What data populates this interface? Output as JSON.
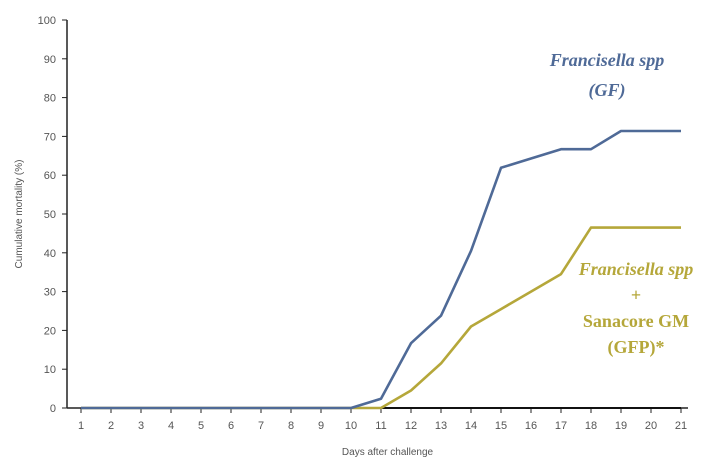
{
  "chart_data": {
    "type": "line",
    "xlabel": "Days after challenge",
    "ylabel": "Cumulative mortality (%)",
    "x": [
      1,
      2,
      3,
      4,
      5,
      6,
      7,
      8,
      9,
      10,
      11,
      12,
      13,
      14,
      15,
      16,
      17,
      18,
      19,
      20,
      21
    ],
    "xlim": [
      1,
      21
    ],
    "ylim": [
      0,
      100
    ],
    "yticks": [
      0,
      10,
      20,
      30,
      40,
      50,
      60,
      70,
      80,
      90,
      100
    ],
    "grid": false,
    "series": [
      {
        "id": "gf",
        "color": "#4f6a97",
        "values": [
          0,
          0,
          0,
          0,
          0,
          0,
          0,
          0,
          0,
          0,
          2.4,
          16.7,
          23.8,
          40.5,
          61.9,
          64.3,
          66.7,
          66.7,
          71.4,
          71.4,
          71.4
        ]
      },
      {
        "id": "gfp",
        "color": "#b5a73a",
        "values": [
          0,
          0,
          0,
          0,
          0,
          0,
          0,
          0,
          0,
          0,
          0,
          4.5,
          11.5,
          21,
          25.5,
          30,
          34.5,
          46.5,
          46.5,
          46.5,
          46.5
        ]
      },
      {
        "id": "baseline",
        "color": "#111111",
        "values": [
          0,
          0,
          0,
          0,
          0,
          0,
          0,
          0,
          0,
          0,
          0,
          0,
          0,
          0,
          0,
          0,
          0,
          0,
          0,
          0,
          0
        ]
      }
    ],
    "annotations": [
      {
        "id": "gf-label",
        "color": "#4f6a97",
        "lines": [
          {
            "text": "Francisella spp",
            "italic": true
          },
          {
            "text": "(GF)",
            "italic": true
          }
        ]
      },
      {
        "id": "gfp-label",
        "color": "#b5a73a",
        "lines": [
          {
            "text": "Francisella spp",
            "italic": true
          },
          {
            "text": "+",
            "italic": false
          },
          {
            "text": "Sanacore GM",
            "italic": false
          },
          {
            "text": "(GFP)*",
            "italic": false
          }
        ]
      }
    ]
  }
}
